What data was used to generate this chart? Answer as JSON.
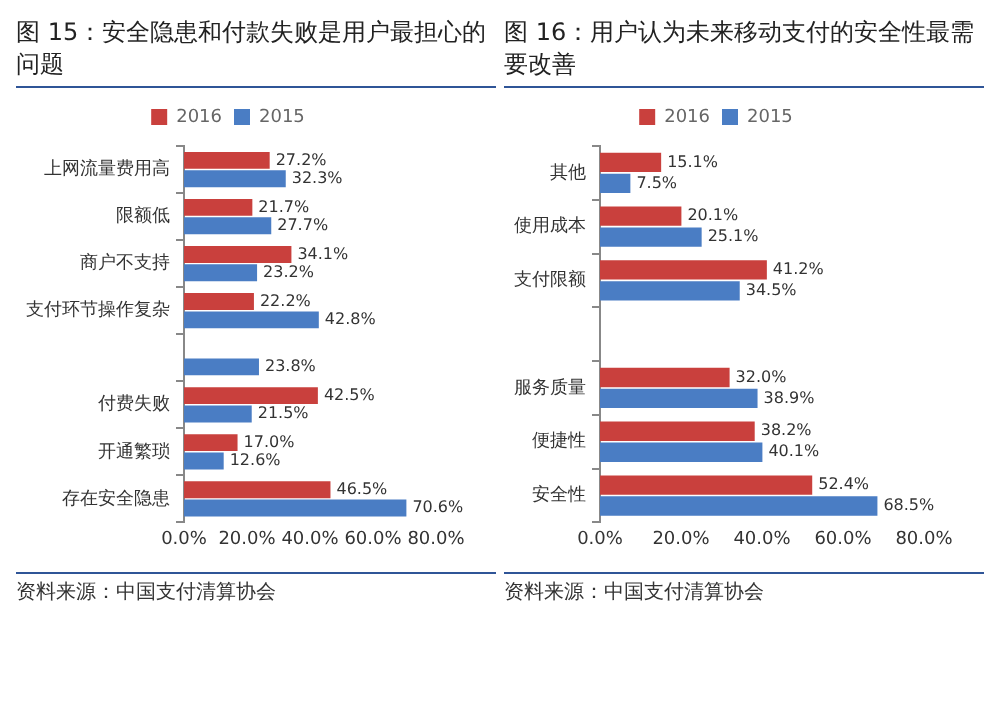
{
  "chart_data": [
    {
      "type": "bar",
      "orientation": "horizontal",
      "title": "图 15：安全隐患和付款失败是用户最担心的问题",
      "categories": [
        "上网流量费用高",
        "限额低",
        "商户不支持",
        "支付环节操作复杂",
        null,
        "付费失败",
        "开通繁琐",
        "存在安全隐患"
      ],
      "series": [
        {
          "name": "2016",
          "color": "#c9403d",
          "values": [
            27.2,
            21.7,
            34.1,
            22.2,
            null,
            42.5,
            17.0,
            46.5
          ],
          "value_labels": [
            "27.2%",
            "21.7%",
            "34.1%",
            "22.2%",
            null,
            "42.5%",
            "17.0%",
            "46.5%"
          ]
        },
        {
          "name": "2015",
          "color": "#4a7dc4",
          "values": [
            32.3,
            27.7,
            23.2,
            42.8,
            23.8,
            21.5,
            12.6,
            70.6
          ],
          "value_labels": [
            "32.3%",
            "27.7%",
            "23.2%",
            "42.8%",
            "23.8%",
            "21.5%",
            "12.6%",
            "70.6%"
          ]
        }
      ],
      "xlim": [
        0,
        80
      ],
      "xticks": [
        {
          "value": 0,
          "label": "0.0%"
        },
        {
          "value": 20,
          "label": "20.0%"
        },
        {
          "value": 40,
          "label": "40.0%"
        },
        {
          "value": 60,
          "label": "60.0%"
        },
        {
          "value": 80,
          "label": "80.0%"
        }
      ],
      "legend": "top",
      "annotations": [
        "资料来源：中国支付清算协会"
      ]
    },
    {
      "type": "bar",
      "orientation": "horizontal",
      "title": "图 16：用户认为未来移动支付的安全性最需要改善",
      "categories": [
        "其他",
        "使用成本",
        "支付限额",
        null,
        "服务质量",
        "便捷性",
        "安全性"
      ],
      "series": [
        {
          "name": "2016",
          "color": "#c9403d",
          "values": [
            15.1,
            20.1,
            41.2,
            null,
            32.0,
            38.2,
            52.4
          ],
          "value_labels": [
            "15.1%",
            "20.1%",
            "41.2%",
            null,
            "32.0%",
            "38.2%",
            "52.4%"
          ]
        },
        {
          "name": "2015",
          "color": "#4a7dc4",
          "values": [
            7.5,
            25.1,
            34.5,
            null,
            38.9,
            40.1,
            68.5
          ],
          "value_labels": [
            "7.5%",
            "25.1%",
            "34.5%",
            null,
            "38.9%",
            "40.1%",
            "68.5%"
          ]
        }
      ],
      "xlim": [
        0,
        80
      ],
      "xticks": [
        {
          "value": 0,
          "label": "0.0%"
        },
        {
          "value": 20,
          "label": "20.0%"
        },
        {
          "value": 40,
          "label": "40.0%"
        },
        {
          "value": 60,
          "label": "60.0%"
        },
        {
          "value": 80,
          "label": "80.0%"
        }
      ],
      "legend": "top",
      "annotations": [
        "资料来源：中国支付清算协会"
      ]
    }
  ]
}
